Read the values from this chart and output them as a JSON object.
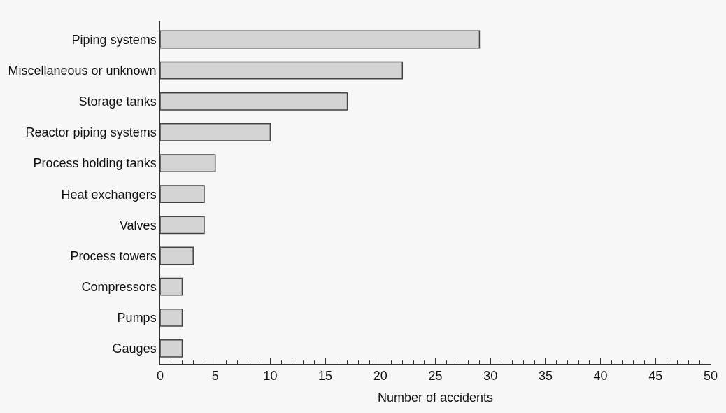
{
  "chart_data": {
    "type": "bar",
    "orientation": "horizontal",
    "xlabel": "Number of accidents",
    "categories": [
      "Piping systems",
      "Miscellaneous or unknown",
      "Storage tanks",
      "Reactor piping systems",
      "Process holding tanks",
      "Heat exchangers",
      "Valves",
      "Process towers",
      "Compressors",
      "Pumps",
      "Gauges"
    ],
    "values": [
      29,
      22,
      17,
      10,
      5,
      4,
      4,
      3,
      2,
      2,
      2
    ],
    "color": "#d4d4d4",
    "xlim": [
      0,
      50
    ],
    "xticks": [
      0,
      5,
      10,
      15,
      20,
      25,
      30,
      35,
      40,
      45,
      50
    ],
    "grid": false
  }
}
